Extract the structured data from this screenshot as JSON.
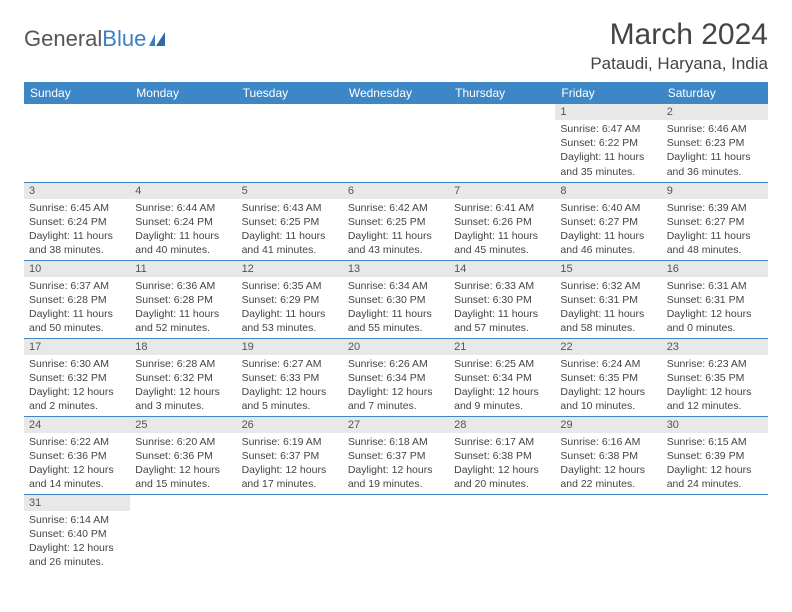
{
  "logo": {
    "text1": "General",
    "text2": "Blue"
  },
  "title": "March 2024",
  "location": "Pataudi, Haryana, India",
  "colors": {
    "header_bg": "#3d87c7",
    "header_text": "#ffffff",
    "daynum_bg": "#e8e8e8",
    "border": "#3d87c7",
    "logo_gray": "#555555",
    "logo_blue": "#3b7fc4"
  },
  "day_headers": [
    "Sunday",
    "Monday",
    "Tuesday",
    "Wednesday",
    "Thursday",
    "Friday",
    "Saturday"
  ],
  "weeks": [
    [
      null,
      null,
      null,
      null,
      null,
      {
        "n": "1",
        "sr": "Sunrise: 6:47 AM",
        "ss": "Sunset: 6:22 PM",
        "d1": "Daylight: 11 hours",
        "d2": "and 35 minutes."
      },
      {
        "n": "2",
        "sr": "Sunrise: 6:46 AM",
        "ss": "Sunset: 6:23 PM",
        "d1": "Daylight: 11 hours",
        "d2": "and 36 minutes."
      }
    ],
    [
      {
        "n": "3",
        "sr": "Sunrise: 6:45 AM",
        "ss": "Sunset: 6:24 PM",
        "d1": "Daylight: 11 hours",
        "d2": "and 38 minutes."
      },
      {
        "n": "4",
        "sr": "Sunrise: 6:44 AM",
        "ss": "Sunset: 6:24 PM",
        "d1": "Daylight: 11 hours",
        "d2": "and 40 minutes."
      },
      {
        "n": "5",
        "sr": "Sunrise: 6:43 AM",
        "ss": "Sunset: 6:25 PM",
        "d1": "Daylight: 11 hours",
        "d2": "and 41 minutes."
      },
      {
        "n": "6",
        "sr": "Sunrise: 6:42 AM",
        "ss": "Sunset: 6:25 PM",
        "d1": "Daylight: 11 hours",
        "d2": "and 43 minutes."
      },
      {
        "n": "7",
        "sr": "Sunrise: 6:41 AM",
        "ss": "Sunset: 6:26 PM",
        "d1": "Daylight: 11 hours",
        "d2": "and 45 minutes."
      },
      {
        "n": "8",
        "sr": "Sunrise: 6:40 AM",
        "ss": "Sunset: 6:27 PM",
        "d1": "Daylight: 11 hours",
        "d2": "and 46 minutes."
      },
      {
        "n": "9",
        "sr": "Sunrise: 6:39 AM",
        "ss": "Sunset: 6:27 PM",
        "d1": "Daylight: 11 hours",
        "d2": "and 48 minutes."
      }
    ],
    [
      {
        "n": "10",
        "sr": "Sunrise: 6:37 AM",
        "ss": "Sunset: 6:28 PM",
        "d1": "Daylight: 11 hours",
        "d2": "and 50 minutes."
      },
      {
        "n": "11",
        "sr": "Sunrise: 6:36 AM",
        "ss": "Sunset: 6:28 PM",
        "d1": "Daylight: 11 hours",
        "d2": "and 52 minutes."
      },
      {
        "n": "12",
        "sr": "Sunrise: 6:35 AM",
        "ss": "Sunset: 6:29 PM",
        "d1": "Daylight: 11 hours",
        "d2": "and 53 minutes."
      },
      {
        "n": "13",
        "sr": "Sunrise: 6:34 AM",
        "ss": "Sunset: 6:30 PM",
        "d1": "Daylight: 11 hours",
        "d2": "and 55 minutes."
      },
      {
        "n": "14",
        "sr": "Sunrise: 6:33 AM",
        "ss": "Sunset: 6:30 PM",
        "d1": "Daylight: 11 hours",
        "d2": "and 57 minutes."
      },
      {
        "n": "15",
        "sr": "Sunrise: 6:32 AM",
        "ss": "Sunset: 6:31 PM",
        "d1": "Daylight: 11 hours",
        "d2": "and 58 minutes."
      },
      {
        "n": "16",
        "sr": "Sunrise: 6:31 AM",
        "ss": "Sunset: 6:31 PM",
        "d1": "Daylight: 12 hours",
        "d2": "and 0 minutes."
      }
    ],
    [
      {
        "n": "17",
        "sr": "Sunrise: 6:30 AM",
        "ss": "Sunset: 6:32 PM",
        "d1": "Daylight: 12 hours",
        "d2": "and 2 minutes."
      },
      {
        "n": "18",
        "sr": "Sunrise: 6:28 AM",
        "ss": "Sunset: 6:32 PM",
        "d1": "Daylight: 12 hours",
        "d2": "and 3 minutes."
      },
      {
        "n": "19",
        "sr": "Sunrise: 6:27 AM",
        "ss": "Sunset: 6:33 PM",
        "d1": "Daylight: 12 hours",
        "d2": "and 5 minutes."
      },
      {
        "n": "20",
        "sr": "Sunrise: 6:26 AM",
        "ss": "Sunset: 6:34 PM",
        "d1": "Daylight: 12 hours",
        "d2": "and 7 minutes."
      },
      {
        "n": "21",
        "sr": "Sunrise: 6:25 AM",
        "ss": "Sunset: 6:34 PM",
        "d1": "Daylight: 12 hours",
        "d2": "and 9 minutes."
      },
      {
        "n": "22",
        "sr": "Sunrise: 6:24 AM",
        "ss": "Sunset: 6:35 PM",
        "d1": "Daylight: 12 hours",
        "d2": "and 10 minutes."
      },
      {
        "n": "23",
        "sr": "Sunrise: 6:23 AM",
        "ss": "Sunset: 6:35 PM",
        "d1": "Daylight: 12 hours",
        "d2": "and 12 minutes."
      }
    ],
    [
      {
        "n": "24",
        "sr": "Sunrise: 6:22 AM",
        "ss": "Sunset: 6:36 PM",
        "d1": "Daylight: 12 hours",
        "d2": "and 14 minutes."
      },
      {
        "n": "25",
        "sr": "Sunrise: 6:20 AM",
        "ss": "Sunset: 6:36 PM",
        "d1": "Daylight: 12 hours",
        "d2": "and 15 minutes."
      },
      {
        "n": "26",
        "sr": "Sunrise: 6:19 AM",
        "ss": "Sunset: 6:37 PM",
        "d1": "Daylight: 12 hours",
        "d2": "and 17 minutes."
      },
      {
        "n": "27",
        "sr": "Sunrise: 6:18 AM",
        "ss": "Sunset: 6:37 PM",
        "d1": "Daylight: 12 hours",
        "d2": "and 19 minutes."
      },
      {
        "n": "28",
        "sr": "Sunrise: 6:17 AM",
        "ss": "Sunset: 6:38 PM",
        "d1": "Daylight: 12 hours",
        "d2": "and 20 minutes."
      },
      {
        "n": "29",
        "sr": "Sunrise: 6:16 AM",
        "ss": "Sunset: 6:38 PM",
        "d1": "Daylight: 12 hours",
        "d2": "and 22 minutes."
      },
      {
        "n": "30",
        "sr": "Sunrise: 6:15 AM",
        "ss": "Sunset: 6:39 PM",
        "d1": "Daylight: 12 hours",
        "d2": "and 24 minutes."
      }
    ],
    [
      {
        "n": "31",
        "sr": "Sunrise: 6:14 AM",
        "ss": "Sunset: 6:40 PM",
        "d1": "Daylight: 12 hours",
        "d2": "and 26 minutes."
      },
      null,
      null,
      null,
      null,
      null,
      null
    ]
  ]
}
